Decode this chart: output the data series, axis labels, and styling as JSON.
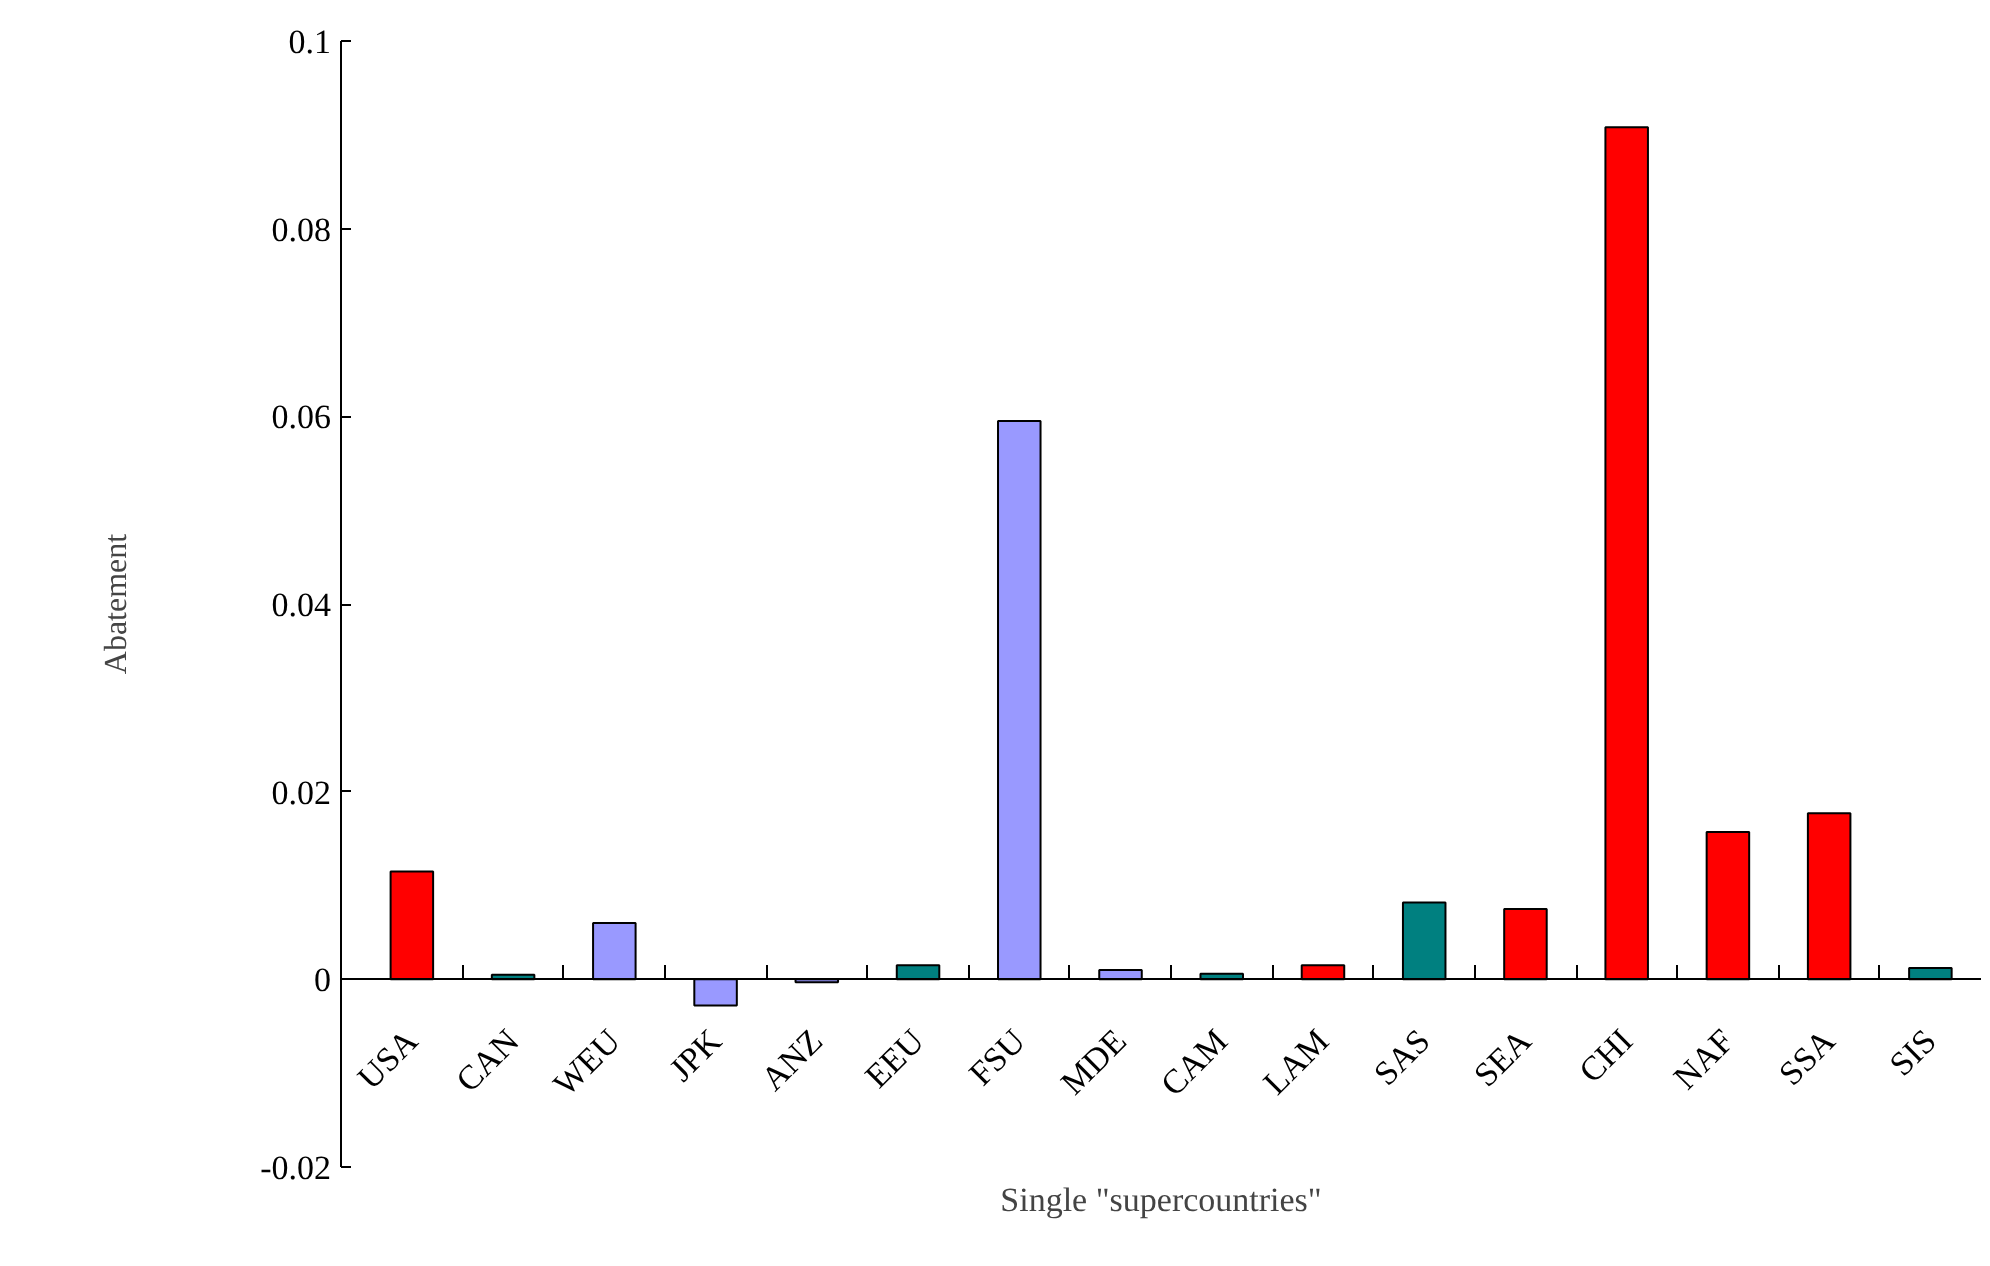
{
  "chart_data": {
    "type": "bar",
    "xlabel": "Single \"supercountries\"",
    "ylabel": "Abatement",
    "categories": [
      "USA",
      "CAN",
      "WEU",
      "JPK",
      "ANZ",
      "EEU",
      "FSU",
      "MDE",
      "CAM",
      "LAM",
      "SAS",
      "SEA",
      "CHI",
      "NAF",
      "SSA",
      "SIS"
    ],
    "values": [
      0.0115,
      0.0005,
      0.006,
      -0.0028,
      -0.0003,
      0.0015,
      0.0595,
      0.001,
      0.0006,
      0.0015,
      0.0082,
      0.0075,
      0.0908,
      0.0157,
      0.0177,
      0.0012
    ],
    "colors": [
      "#ff0000",
      "#008080",
      "#9999ff",
      "#9999ff",
      "#9999ff",
      "#008080",
      "#9999ff",
      "#9999ff",
      "#008080",
      "#ff0000",
      "#008080",
      "#ff0000",
      "#ff0000",
      "#ff0000",
      "#ff0000",
      "#008080"
    ],
    "ylim": [
      -0.02,
      0.1
    ],
    "yticks": [
      -0.02,
      0,
      0.02,
      0.04,
      0.06,
      0.08,
      0.1
    ],
    "grid": false
  }
}
